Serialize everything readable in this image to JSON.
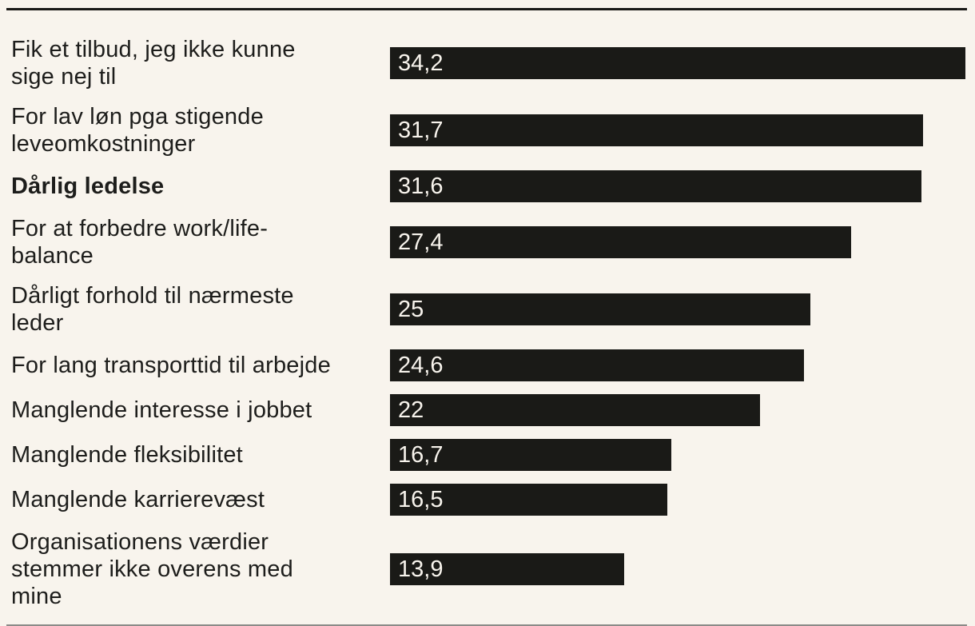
{
  "chart_data": {
    "type": "bar",
    "orientation": "horizontal",
    "title": "",
    "xlabel": "",
    "ylabel": "",
    "xlim": [
      0,
      34.2
    ],
    "grid": false,
    "legend": false,
    "decimal_separator": ",",
    "categories": [
      "Fik et tilbud, jeg ikke kunne sige nej til",
      "For lav løn pga stigende leveomkostninger",
      "Dårlig ledelse",
      "For at forbedre work/life-balance",
      "Dårligt forhold til nærmeste leder",
      "For lang transporttid til arbejde",
      "Manglende interesse i jobbet",
      "Manglende fleksibilitet",
      "Manglende karrierevæst",
      "Organisationens værdier stemmer ikke overens med mine"
    ],
    "values": [
      34.2,
      31.7,
      31.6,
      27.4,
      25,
      24.6,
      22,
      16.7,
      16.5,
      13.9
    ],
    "rows": [
      {
        "label": "Fik et tilbud, jeg ikke kunne\nsige nej til",
        "value": 34.2,
        "value_label": "34,2",
        "bold": false
      },
      {
        "label": "For lav løn pga stigende\nleveomkostninger",
        "value": 31.7,
        "value_label": "31,7",
        "bold": false
      },
      {
        "label": "Dårlig ledelse",
        "value": 31.6,
        "value_label": "31,6",
        "bold": true
      },
      {
        "label": "For at forbedre work/life-\nbalance",
        "value": 27.4,
        "value_label": "27,4",
        "bold": false
      },
      {
        "label": "Dårligt forhold til nærmeste\nleder",
        "value": 25,
        "value_label": "25",
        "bold": false
      },
      {
        "label": "For lang transporttid til arbejde",
        "value": 24.6,
        "value_label": "24,6",
        "bold": false
      },
      {
        "label": "Manglende interesse i jobbet",
        "value": 22,
        "value_label": "22",
        "bold": false
      },
      {
        "label": "Manglende fleksibilitet",
        "value": 16.7,
        "value_label": "16,7",
        "bold": false
      },
      {
        "label": "Manglende karrierevæst",
        "value": 16.5,
        "value_label": "16,5",
        "bold": false
      },
      {
        "label": "Organisationens værdier\nstemmer ikke overens med\nmine",
        "value": 13.9,
        "value_label": "13,9",
        "bold": false
      }
    ],
    "style": {
      "background": "#f8f4ed",
      "bar_color": "#1a1a17",
      "label_color": "#1d1d1b",
      "value_label_color": "#f8f4ed",
      "top_rule_color": "#1a1a17",
      "bottom_rule_color": "#8b8b88"
    }
  }
}
